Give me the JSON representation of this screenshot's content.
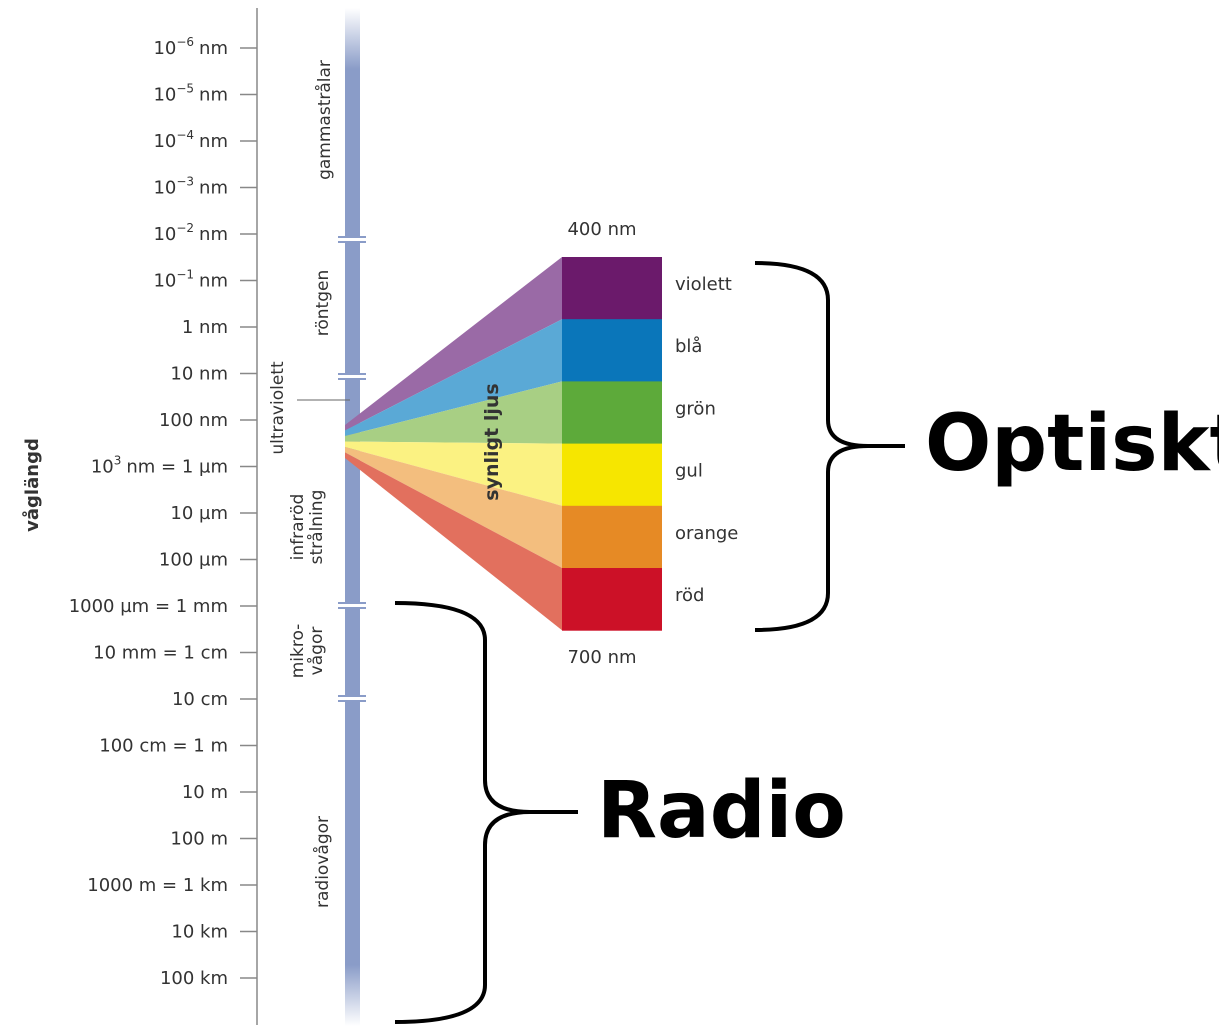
{
  "axis_label": "våglängd",
  "ticks": [
    {
      "base": "10",
      "sup": "−6",
      "rest": "nm"
    },
    {
      "base": "10",
      "sup": "−5",
      "rest": "nm"
    },
    {
      "base": "10",
      "sup": "−4",
      "rest": "nm"
    },
    {
      "base": "10",
      "sup": "−3",
      "rest": "nm"
    },
    {
      "base": "10",
      "sup": "−2",
      "rest": "nm"
    },
    {
      "base": "10",
      "sup": "−1",
      "rest": "nm"
    },
    "1 nm",
    "10 nm",
    "100 nm",
    {
      "base": "10",
      "sup": "3",
      "rest": "nm = 1 µm"
    },
    "10 µm",
    "100 µm",
    "1000 µm = 1 mm",
    "10 mm = 1 cm",
    "10 cm",
    "100 cm = 1 m",
    "10 m",
    "100 m",
    "1000 m = 1 km",
    "10 km",
    "100 km"
  ],
  "bands": {
    "gamma": "gammastrålar",
    "xray": "röntgen",
    "uv": "ultraviolett",
    "ir": [
      "infraröd",
      "strålning"
    ],
    "micro": [
      "mikro-",
      "vågor"
    ],
    "radio": "radiovågor"
  },
  "visible": {
    "label": "synligt ljus",
    "top": "400 nm",
    "bottom": "700 nm",
    "colors": [
      "violett",
      "blå",
      "grön",
      "gul",
      "orange",
      "röd"
    ]
  },
  "groups": {
    "optical": "Optiskt",
    "radio": "Radio"
  }
}
